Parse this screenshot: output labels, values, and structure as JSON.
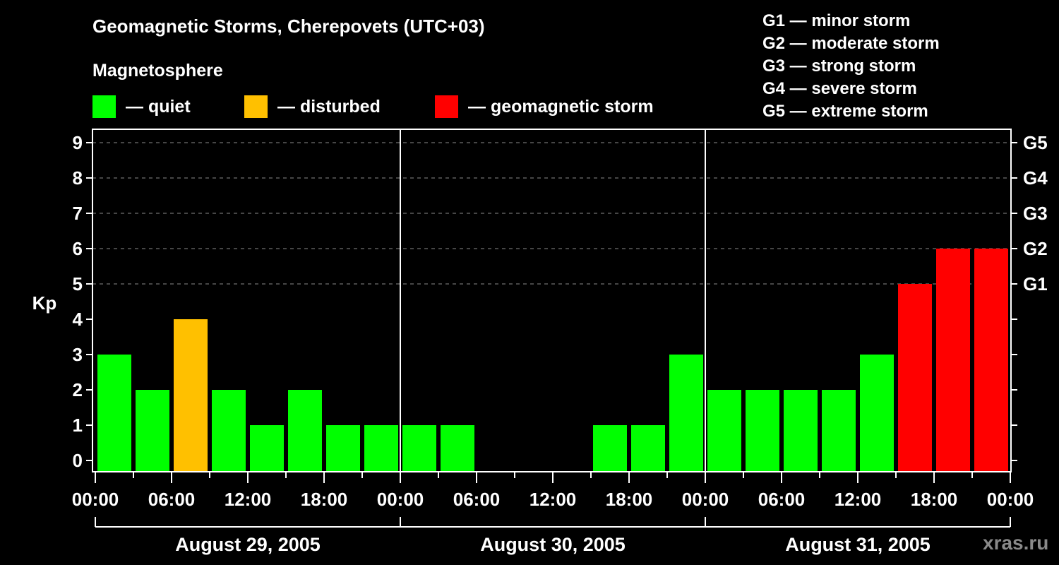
{
  "header": {
    "title": "Geomagnetic Storms, Cherepovets (UTC+03)",
    "subtitle": "Magnetosphere"
  },
  "legend": [
    {
      "label": "— quiet",
      "color": "#00ff00"
    },
    {
      "label": "— disturbed",
      "color": "#ffc000"
    },
    {
      "label": "— geomagnetic storm",
      "color": "#ff0000"
    }
  ],
  "g_scale": [
    "G1 — minor storm",
    "G2 — moderate storm",
    "G3 — strong storm",
    "G4 — severe storm",
    "G5 — extreme storm"
  ],
  "watermark": "xras.ru",
  "chart_data": {
    "type": "bar",
    "title": "Geomagnetic Storms, Cherepovets (UTC+03)",
    "xlabel": "",
    "ylabel": "Kp",
    "ylim": [
      0,
      9
    ],
    "yticks": [
      0,
      1,
      2,
      3,
      4,
      5,
      6,
      7,
      8,
      9
    ],
    "right_axis_ticks": [
      {
        "kp": 5,
        "label": "G1"
      },
      {
        "kp": 6,
        "label": "G2"
      },
      {
        "kp": 7,
        "label": "G3"
      },
      {
        "kp": 8,
        "label": "G4"
      },
      {
        "kp": 9,
        "label": "G5"
      }
    ],
    "grid": "horizontal dashed at Kp 5-9",
    "xtick_labels": [
      "00:00",
      "06:00",
      "12:00",
      "18:00",
      "00:00",
      "06:00",
      "12:00",
      "18:00",
      "00:00",
      "06:00",
      "12:00",
      "18:00",
      "00:00"
    ],
    "days": [
      "August 29, 2005",
      "August 30, 2005",
      "August 31, 2005"
    ],
    "interval_hours": 3,
    "categories": [
      "Aug 29 00-03",
      "Aug 29 03-06",
      "Aug 29 06-09",
      "Aug 29 09-12",
      "Aug 29 12-15",
      "Aug 29 15-18",
      "Aug 29 18-21",
      "Aug 29 21-24",
      "Aug 30 00-03",
      "Aug 30 03-06",
      "Aug 30 06-09",
      "Aug 30 09-12",
      "Aug 30 12-15",
      "Aug 30 15-18",
      "Aug 30 18-21",
      "Aug 30 21-24",
      "Aug 31 00-03",
      "Aug 31 03-06",
      "Aug 31 06-09",
      "Aug 31 09-12",
      "Aug 31 12-15",
      "Aug 31 15-18",
      "Aug 31 18-21",
      "Aug 31 21-24"
    ],
    "values": [
      3,
      2,
      4,
      2,
      1,
      2,
      1,
      1,
      1,
      1,
      0,
      0,
      0,
      1,
      1,
      3,
      2,
      2,
      2,
      2,
      3,
      5,
      6,
      6
    ],
    "status": [
      "quiet",
      "quiet",
      "disturbed",
      "quiet",
      "quiet",
      "quiet",
      "quiet",
      "quiet",
      "quiet",
      "quiet",
      "quiet",
      "quiet",
      "quiet",
      "quiet",
      "quiet",
      "quiet",
      "quiet",
      "quiet",
      "quiet",
      "quiet",
      "quiet",
      "storm",
      "storm",
      "storm"
    ],
    "colors": {
      "quiet": "#00ff00",
      "disturbed": "#ffc000",
      "storm": "#ff0000"
    }
  }
}
